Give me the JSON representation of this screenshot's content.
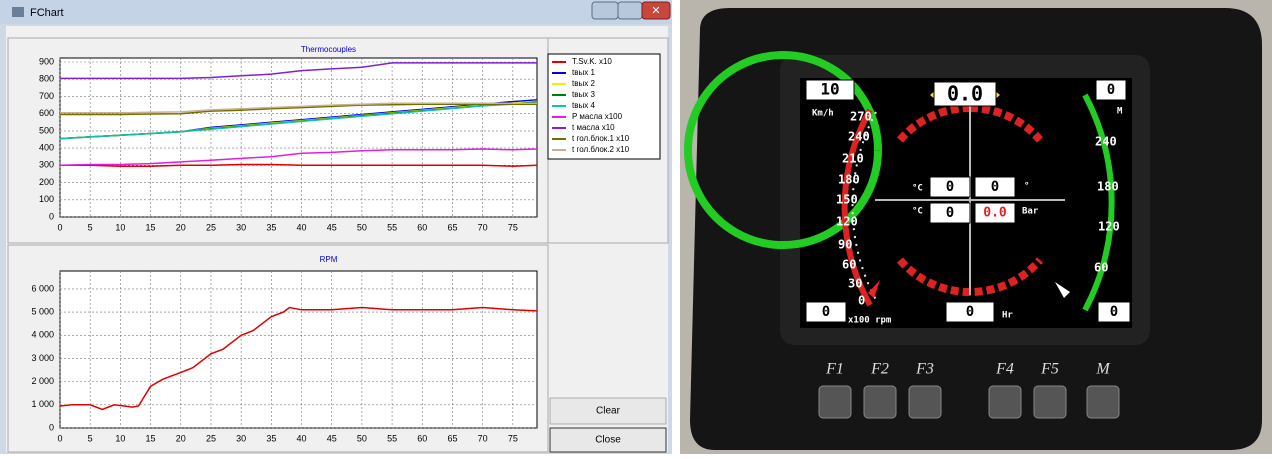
{
  "window": {
    "title": "FChart",
    "buttons": [
      "Clear",
      "Close"
    ]
  },
  "chart_data": [
    {
      "type": "line",
      "title": "Thermocouples",
      "x": [
        0,
        5,
        10,
        15,
        20,
        25,
        30,
        35,
        40,
        45,
        50,
        55,
        60,
        65,
        70,
        75,
        79
      ],
      "xlim": [
        0,
        79
      ],
      "xticks": [
        0,
        5,
        10,
        15,
        20,
        25,
        30,
        35,
        40,
        45,
        50,
        55,
        60,
        65,
        70,
        75
      ],
      "ylim": [
        0,
        900
      ],
      "yticks": [
        0,
        100,
        200,
        300,
        400,
        500,
        600,
        700,
        800,
        900
      ],
      "grid": true,
      "series": [
        {
          "name": "T.Sv.K. x10",
          "color": "#e00000",
          "values": [
            300,
            300,
            295,
            295,
            300,
            300,
            305,
            305,
            300,
            300,
            300,
            300,
            300,
            300,
            300,
            295,
            300
          ]
        },
        {
          "name": "tвых 1",
          "color": "#0000e0",
          "values": [
            455,
            465,
            475,
            485,
            495,
            520,
            535,
            550,
            565,
            580,
            595,
            610,
            625,
            640,
            655,
            670,
            680
          ]
        },
        {
          "name": "tвых 2",
          "color": "#f0f000",
          "values": [
            455,
            465,
            475,
            485,
            495,
            515,
            530,
            545,
            560,
            575,
            590,
            605,
            620,
            635,
            650,
            662,
            672
          ]
        },
        {
          "name": "tвых 3",
          "color": "#008000",
          "values": [
            455,
            465,
            475,
            485,
            495,
            512,
            527,
            542,
            557,
            572,
            588,
            602,
            617,
            632,
            647,
            658,
            668
          ]
        },
        {
          "name": "tвых 4",
          "color": "#10c0b0",
          "values": [
            455,
            465,
            475,
            485,
            495,
            510,
            525,
            540,
            555,
            570,
            585,
            600,
            615,
            630,
            645,
            655,
            662
          ]
        },
        {
          "name": "P масла x100",
          "color": "#e020e0",
          "values": [
            300,
            305,
            305,
            310,
            320,
            330,
            340,
            350,
            370,
            375,
            385,
            390,
            390,
            390,
            395,
            390,
            395
          ]
        },
        {
          "name": "t масла x10",
          "color": "#8020d0",
          "values": [
            805,
            805,
            805,
            805,
            805,
            810,
            820,
            830,
            850,
            860,
            870,
            895,
            895,
            895,
            895,
            895,
            895
          ]
        },
        {
          "name": "t гол.блок.1 x10",
          "color": "#707000",
          "values": [
            595,
            595,
            595,
            598,
            600,
            615,
            620,
            628,
            635,
            642,
            650,
            652,
            655,
            655,
            655,
            655,
            655
          ]
        },
        {
          "name": "t гол.блок.2 x10",
          "color": "#c8b090",
          "values": [
            605,
            605,
            605,
            608,
            610,
            622,
            628,
            636,
            642,
            650,
            655,
            660,
            660,
            660,
            660,
            660,
            660
          ]
        }
      ]
    },
    {
      "type": "line",
      "title": "RPM",
      "x": [
        0,
        2,
        5,
        7,
        9,
        12,
        13,
        15,
        17,
        20,
        22,
        25,
        27,
        30,
        32,
        35,
        37,
        38,
        40,
        45,
        50,
        55,
        60,
        65,
        70,
        75,
        79
      ],
      "xlim": [
        0,
        79
      ],
      "xticks": [
        0,
        5,
        10,
        15,
        20,
        25,
        30,
        35,
        40,
        45,
        50,
        55,
        60,
        65,
        70,
        75
      ],
      "ylim": [
        0,
        6600
      ],
      "yticks": [
        0,
        {
          "value": 1000,
          "label": "1 000"
        },
        {
          "value": 2000,
          "label": "2 000"
        },
        {
          "value": 3000,
          "label": "3 000"
        },
        {
          "value": 4000,
          "label": "4 000"
        },
        {
          "value": 5000,
          "label": "5 000"
        },
        {
          "value": 6000,
          "label": "6 000"
        }
      ],
      "grid": true,
      "series": [
        {
          "color": "#e00000",
          "values": [
            950,
            1000,
            1000,
            800,
            1000,
            900,
            950,
            1800,
            2100,
            2400,
            2600,
            3200,
            3400,
            4000,
            4200,
            4800,
            5000,
            5200,
            5100,
            5100,
            5200,
            5100,
            5100,
            5100,
            5200,
            5100,
            5050
          ]
        }
      ]
    }
  ],
  "device": {
    "speed_box": "10",
    "speed_unit": "Km/h",
    "left_scale": [
      "270",
      "240",
      "210",
      "180",
      "150",
      "120",
      "90",
      "60",
      "30",
      "0"
    ],
    "top_value": "0.0",
    "right_box": "0",
    "right_unit": "M",
    "right_scale": [
      "240",
      "180",
      "120",
      "60"
    ],
    "temp_left": "0",
    "temp_right": "0",
    "temp_unit_left": "°C",
    "temp_unit_right": "°",
    "temp_unit_2": "°C",
    "oil_temp": "0",
    "oil_pressure": "0.0",
    "pressure_unit": "Bar",
    "bottom_left_box": "0",
    "rpm_unit": "x100 rpm",
    "bottom_center_box": "0",
    "hours_unit": "Hr",
    "bottom_right_box": "0",
    "keys": [
      "F1",
      "F2",
      "F3",
      "F4",
      "F5",
      "M"
    ]
  }
}
